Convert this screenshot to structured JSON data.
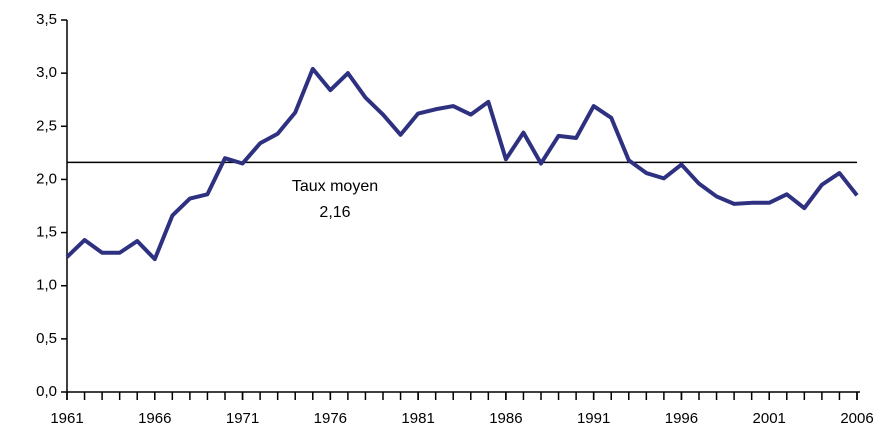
{
  "chart_data": {
    "type": "line",
    "x": [
      1961,
      1962,
      1963,
      1964,
      1965,
      1966,
      1967,
      1968,
      1969,
      1970,
      1971,
      1972,
      1973,
      1974,
      1975,
      1976,
      1977,
      1978,
      1979,
      1980,
      1981,
      1982,
      1983,
      1984,
      1985,
      1986,
      1987,
      1988,
      1989,
      1990,
      1991,
      1992,
      1993,
      1994,
      1995,
      1996,
      1997,
      1998,
      1999,
      2000,
      2001,
      2002,
      2003,
      2004,
      2005,
      2006
    ],
    "series": [
      {
        "color": "#2e3180",
        "values": [
          1.27,
          1.43,
          1.31,
          1.31,
          1.42,
          1.25,
          1.66,
          1.82,
          1.86,
          2.2,
          2.15,
          2.34,
          2.43,
          2.63,
          3.04,
          2.84,
          3.0,
          2.77,
          2.61,
          2.42,
          2.62,
          2.66,
          2.69,
          2.61,
          2.73,
          2.19,
          2.44,
          2.15,
          2.41,
          2.39,
          2.69,
          2.58,
          2.18,
          2.06,
          2.01,
          2.14,
          1.96,
          1.84,
          1.77,
          1.78,
          1.78,
          1.86,
          1.73,
          1.95,
          2.06,
          1.85
        ]
      }
    ],
    "xlim": [
      1961,
      2006
    ],
    "xticks": [
      1961,
      1966,
      1971,
      1976,
      1981,
      1986,
      1991,
      1996,
      2001,
      2006
    ],
    "ylim": [
      0,
      3.5
    ],
    "yticks": [
      {
        "value": 0,
        "label": "0,0"
      },
      {
        "value": 0.5,
        "label": "0,5"
      },
      {
        "value": 1,
        "label": "1,0"
      },
      {
        "value": 1.5,
        "label": "1,5"
      },
      {
        "value": 2,
        "label": "2,0"
      },
      {
        "value": 2.5,
        "label": "2,5"
      },
      {
        "value": 3,
        "label": "3,0"
      },
      {
        "value": 3.5,
        "label": "3,5"
      }
    ],
    "average": {
      "value": 2.16,
      "label": "Taux moyen",
      "value_label": "2,16"
    }
  }
}
